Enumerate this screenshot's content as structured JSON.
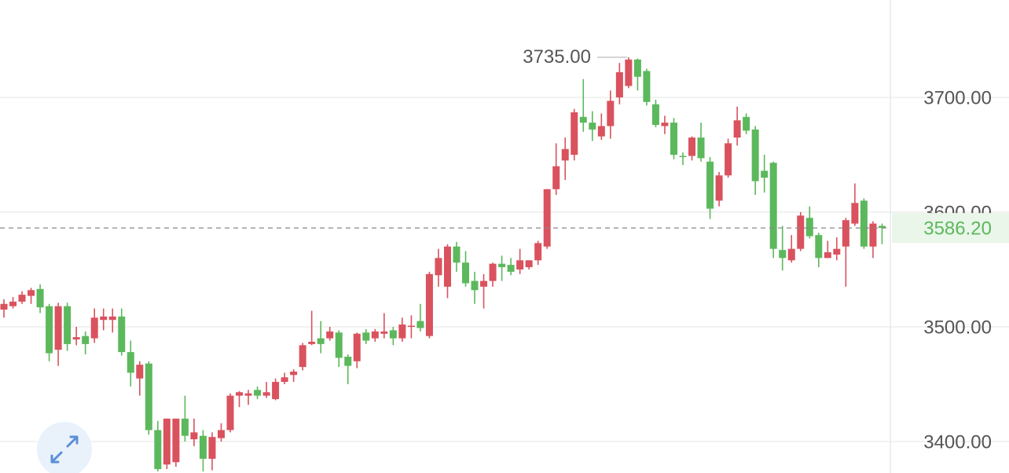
{
  "chart_data": {
    "type": "candlestick",
    "open": [
      3515,
      3518,
      3522,
      3527,
      3533,
      3518,
      3480,
      3518,
      3489,
      3492,
      3490,
      3506,
      3506,
      3509,
      3478,
      3455,
      3468,
      3410,
      3380,
      3382,
      3420,
      3402,
      3405,
      3385,
      3403,
      3410,
      3440,
      3440,
      3445,
      3440,
      3437,
      3452,
      3458,
      3465,
      3485,
      3490,
      3490,
      3495,
      3474,
      3470,
      3495,
      3490,
      3494,
      3497,
      3490,
      3500,
      3505,
      3492,
      3545,
      3535,
      3570,
      3556,
      3540,
      3535,
      3540,
      3555,
      3554,
      3550,
      3552,
      3558,
      3570,
      3620,
      3645,
      3650,
      3683,
      3678,
      3666,
      3675,
      3700,
      3710,
      3733,
      3723,
      3694,
      3675,
      3678,
      3649,
      3649,
      3665,
      3644,
      3610,
      3632,
      3665,
      3683,
      3672,
      3636,
      3643,
      3567,
      3558,
      3568,
      3595,
      3580,
      3560,
      3563,
      3570,
      3590,
      3610,
      3570,
      3588
    ],
    "high": [
      3524,
      3526,
      3531,
      3534,
      3537,
      3520,
      3521,
      3521,
      3500,
      3496,
      3516,
      3516,
      3516,
      3516,
      3488,
      3470,
      3470,
      3418,
      3420,
      3420,
      3440,
      3420,
      3410,
      3408,
      3416,
      3442,
      3444,
      3445,
      3448,
      3452,
      3455,
      3460,
      3463,
      3486,
      3514,
      3505,
      3500,
      3497,
      3476,
      3495,
      3498,
      3498,
      3512,
      3500,
      3508,
      3510,
      3520,
      3548,
      3568,
      3572,
      3574,
      3566,
      3548,
      3546,
      3556,
      3562,
      3560,
      3568,
      3558,
      3575,
      3620,
      3660,
      3665,
      3690,
      3716,
      3688,
      3686,
      3706,
      3730,
      3735,
      3734,
      3725,
      3698,
      3684,
      3682,
      3652,
      3666,
      3678,
      3648,
      3635,
      3664,
      3692,
      3686,
      3675,
      3650,
      3644,
      3588,
      3580,
      3600,
      3605,
      3582,
      3575,
      3578,
      3595,
      3625,
      3612,
      3592,
      3590
    ],
    "low": [
      3508,
      3516,
      3520,
      3520,
      3512,
      3470,
      3466,
      3479,
      3484,
      3476,
      3486,
      3497,
      3495,
      3475,
      3448,
      3440,
      3406,
      3374,
      3376,
      3378,
      3400,
      3396,
      3374,
      3375,
      3400,
      3408,
      3430,
      3432,
      3437,
      3438,
      3436,
      3450,
      3452,
      3462,
      3484,
      3477,
      3488,
      3465,
      3450,
      3464,
      3485,
      3487,
      3490,
      3484,
      3487,
      3490,
      3496,
      3490,
      3535,
      3525,
      3548,
      3535,
      3520,
      3516,
      3535,
      3540,
      3545,
      3546,
      3550,
      3554,
      3568,
      3615,
      3628,
      3645,
      3670,
      3662,
      3663,
      3664,
      3694,
      3708,
      3706,
      3693,
      3674,
      3668,
      3646,
      3641,
      3645,
      3644,
      3594,
      3605,
      3630,
      3658,
      3668,
      3615,
      3617,
      3560,
      3549,
      3556,
      3566,
      3577,
      3552,
      3560,
      3558,
      3535,
      3588,
      3568,
      3560,
      3572
    ],
    "close": [
      3520,
      3522,
      3528,
      3532,
      3517,
      3477,
      3518,
      3485,
      3491,
      3485,
      3508,
      3509,
      3509,
      3478,
      3460,
      3467,
      3410,
      3376,
      3420,
      3420,
      3405,
      3408,
      3385,
      3404,
      3410,
      3440,
      3443,
      3442,
      3440,
      3443,
      3452,
      3456,
      3461,
      3484,
      3487,
      3485,
      3496,
      3473,
      3466,
      3494,
      3488,
      3496,
      3496,
      3490,
      3502,
      3501,
      3499,
      3546,
      3560,
      3570,
      3556,
      3538,
      3532,
      3540,
      3555,
      3552,
      3548,
      3558,
      3558,
      3573,
      3620,
      3640,
      3655,
      3687,
      3678,
      3672,
      3675,
      3697,
      3722,
      3733,
      3718,
      3696,
      3676,
      3678,
      3650,
      3648,
      3665,
      3647,
      3603,
      3632,
      3660,
      3680,
      3671,
      3627,
      3630,
      3568,
      3560,
      3568,
      3597,
      3579,
      3560,
      3565,
      3568,
      3593,
      3608,
      3570,
      3590,
      3586.2
    ],
    "up_color": "#d9525e",
    "down_color": "#5cb85c",
    "ylim": [
      3372.6,
      3784.9
    ],
    "yticks": [
      {
        "value": 3400,
        "label": "3400.00"
      },
      {
        "value": 3500,
        "label": "3500.00"
      },
      {
        "value": 3600,
        "label": "3600.00"
      },
      {
        "value": 3700,
        "label": "3700.00"
      }
    ],
    "grid": true,
    "max_marker": {
      "value": 3735,
      "label": "3735.00"
    },
    "last_price": {
      "value": 3586.2,
      "label": "3586.20"
    }
  }
}
